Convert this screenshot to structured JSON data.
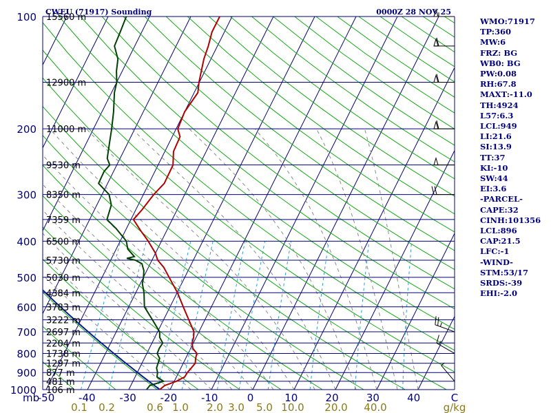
{
  "header": {
    "station": "CWEU (71917) Sounding",
    "time": "0000Z 28 NOV 25"
  },
  "indices": [
    "WMO:71917",
    "TP:360",
    "MW:6",
    "FRZ: BG",
    "WB0: BG",
    "PW:0.08",
    "RH:67.8",
    "MAXT:-11.0",
    "TH:4924",
    "L57:6.3",
    "LCL:949",
    "LI:21.6",
    "SI:13.9",
    "TT:37",
    "KI:-10",
    "SW:44",
    "EI:3.6",
    "-PARCEL-",
    "CAPE:32",
    "CINH:101356",
    "LCL:896",
    "CAP:21.5",
    "LFC:-1",
    "-WIND-",
    "STM:53/17",
    "SRDS:-39",
    "EHI:-2.0"
  ],
  "chart_data": {
    "type": "skew-t",
    "xlabel": "",
    "ylabel": "",
    "pressure_unit_label": "mb",
    "mixing_unit_label": "g/kg",
    "ylim_hpa": [
      1000,
      100
    ],
    "xlim_c": [
      -50,
      50
    ],
    "pressure_levels": [
      {
        "p": 100,
        "label": "100",
        "height": "15560 m"
      },
      {
        "p": 150,
        "label": "",
        "height": "12900 m"
      },
      {
        "p": 200,
        "label": "200",
        "height": "11000 m"
      },
      {
        "p": 250,
        "label": "",
        "height": "9530 m"
      },
      {
        "p": 300,
        "label": "300",
        "height": "8350 m"
      },
      {
        "p": 350,
        "label": "",
        "height": "7359 m"
      },
      {
        "p": 400,
        "label": "400",
        "height": "6500 m"
      },
      {
        "p": 450,
        "label": "",
        "height": "5730 m"
      },
      {
        "p": 500,
        "label": "500",
        "height": "5030 m"
      },
      {
        "p": 550,
        "label": "",
        "height": "4384 m"
      },
      {
        "p": 600,
        "label": "600",
        "height": "3783 m"
      },
      {
        "p": 650,
        "label": "",
        "height": "3222 m"
      },
      {
        "p": 700,
        "label": "700",
        "height": "2697 m"
      },
      {
        "p": 750,
        "label": "",
        "height": "2204 m"
      },
      {
        "p": 800,
        "label": "800",
        "height": "1738 m"
      },
      {
        "p": 850,
        "label": "",
        "height": "1297 m"
      },
      {
        "p": 900,
        "label": "900",
        "height": "877 m"
      },
      {
        "p": 950,
        "label": "",
        "height": "481 m"
      },
      {
        "p": 1000,
        "label": "1000",
        "height": "106 m"
      }
    ],
    "temp_ticks": [
      "-50",
      "-40",
      "-30",
      "-20",
      "-10",
      "0",
      "10",
      "20",
      "30",
      "40",
      "C"
    ],
    "mixing_ticks": [
      "0.1",
      "0.2",
      "0.6",
      "1.0",
      "2.0",
      "3.0",
      "5.0",
      "10.0",
      "20.0",
      "40.0",
      "g/kg"
    ],
    "series": [
      {
        "name": "Temperature",
        "color": "#b00000",
        "points": [
          [
            1000,
            -22.5
          ],
          [
            975,
            -21.8
          ],
          [
            950,
            -19.5
          ],
          [
            925,
            -18.0
          ],
          [
            900,
            -17.9
          ],
          [
            875,
            -17.5
          ],
          [
            850,
            -17.1
          ],
          [
            825,
            -17.6
          ],
          [
            800,
            -17.9
          ],
          [
            775,
            -19.5
          ],
          [
            750,
            -20.3
          ],
          [
            725,
            -20.6
          ],
          [
            700,
            -21.2
          ],
          [
            650,
            -23.9
          ],
          [
            600,
            -26.8
          ],
          [
            550,
            -29.9
          ],
          [
            500,
            -33.8
          ],
          [
            470,
            -36.3
          ],
          [
            450,
            -38.6
          ],
          [
            430,
            -40.1
          ],
          [
            400,
            -43.2
          ],
          [
            375,
            -46.3
          ],
          [
            350,
            -49.4
          ],
          [
            330,
            -48.5
          ],
          [
            300,
            -47.5
          ],
          [
            280,
            -46.3
          ],
          [
            250,
            -46.4
          ],
          [
            230,
            -47.9
          ],
          [
            210,
            -48.1
          ],
          [
            200,
            -49.6
          ],
          [
            180,
            -50.0
          ],
          [
            160,
            -49.1
          ],
          [
            150,
            -50.1
          ],
          [
            130,
            -51.7
          ],
          [
            120,
            -52.2
          ],
          [
            110,
            -53.0
          ],
          [
            100,
            -53.0
          ]
        ]
      },
      {
        "name": "Dewpoint",
        "color": "#004000",
        "points": [
          [
            1000,
            -25.7
          ],
          [
            975,
            -25.4
          ],
          [
            950,
            -22.6
          ],
          [
            925,
            -24.7
          ],
          [
            900,
            -25.1
          ],
          [
            875,
            -25.9
          ],
          [
            850,
            -26.1
          ],
          [
            825,
            -26.3
          ],
          [
            800,
            -27.5
          ],
          [
            775,
            -27.6
          ],
          [
            750,
            -27.4
          ],
          [
            725,
            -28.8
          ],
          [
            700,
            -29.5
          ],
          [
            650,
            -32.7
          ],
          [
            600,
            -36.2
          ],
          [
            550,
            -38.0
          ],
          [
            520,
            -39.5
          ],
          [
            500,
            -40.0
          ],
          [
            480,
            -40.7
          ],
          [
            460,
            -42.0
          ],
          [
            450,
            -44.0
          ],
          [
            445,
            -46.3
          ],
          [
            440,
            -44.7
          ],
          [
            420,
            -47.2
          ],
          [
            400,
            -48.5
          ],
          [
            370,
            -52.5
          ],
          [
            350,
            -55.8
          ],
          [
            320,
            -56.5
          ],
          [
            300,
            -58.3
          ],
          [
            280,
            -62.2
          ],
          [
            260,
            -62.3
          ],
          [
            250,
            -61.7
          ],
          [
            240,
            -63.1
          ],
          [
            220,
            -64.3
          ],
          [
            200,
            -65.6
          ],
          [
            180,
            -67.2
          ],
          [
            160,
            -69.3
          ],
          [
            150,
            -70.0
          ],
          [
            140,
            -71.4
          ],
          [
            130,
            -72.5
          ],
          [
            120,
            -74.9
          ],
          [
            110,
            -75.2
          ],
          [
            100,
            -75.6
          ]
        ]
      }
    ],
    "winds": [
      {
        "p": 100,
        "dir": 270,
        "spd": 55
      },
      {
        "p": 120,
        "dir": 270,
        "spd": 60
      },
      {
        "p": 150,
        "dir": 270,
        "spd": 60
      },
      {
        "p": 200,
        "dir": 270,
        "spd": 60
      },
      {
        "p": 250,
        "dir": 270,
        "spd": 50
      },
      {
        "p": 300,
        "dir": 270,
        "spd": 20
      },
      {
        "p": 700,
        "dir": 290,
        "spd": 25
      },
      {
        "p": 800,
        "dir": 300,
        "spd": 15
      },
      {
        "p": 950,
        "dir": 320,
        "spd": 5
      }
    ]
  }
}
